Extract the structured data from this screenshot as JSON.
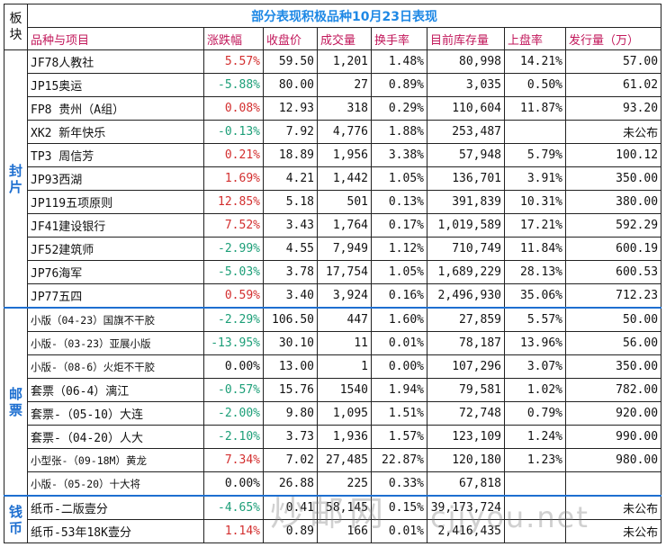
{
  "header": {
    "corner": "板块",
    "title": "部分表现积极品种10月23日表现",
    "columns": [
      "品种与项目",
      "涨跌幅",
      "收盘价",
      "成交量",
      "换手率",
      "目前库存量",
      "上盘率",
      "发行量（万）"
    ]
  },
  "groups": [
    {
      "label": "封片",
      "color": "#1e6fd0",
      "rows": [
        {
          "name": "JF78人教社",
          "change": "5.57%",
          "dir": "up",
          "close": "59.50",
          "volume": "1,201",
          "turnover": "1.48%",
          "stock": "80,998",
          "rate": "14.21%",
          "issue": "57.00"
        },
        {
          "name": "JP15奥运",
          "change": "-5.88%",
          "dir": "down",
          "close": "80.00",
          "volume": "27",
          "turnover": "0.89%",
          "stock": "3,035",
          "rate": "0.50%",
          "issue": "61.02"
        },
        {
          "name": "FP8 贵州（A组）",
          "change": "0.08%",
          "dir": "up",
          "close": "12.93",
          "volume": "318",
          "turnover": "0.29%",
          "stock": "110,604",
          "rate": "11.87%",
          "issue": "93.20"
        },
        {
          "name": "XK2 新年快乐",
          "change": "-0.13%",
          "dir": "down",
          "close": "7.92",
          "volume": "4,776",
          "turnover": "1.88%",
          "stock": "253,487",
          "rate": "",
          "issue": "未公布"
        },
        {
          "name": "TP3 周信芳",
          "change": "0.21%",
          "dir": "up",
          "close": "18.89",
          "volume": "1,956",
          "turnover": "3.38%",
          "stock": "57,948",
          "rate": "5.79%",
          "issue": "100.12"
        },
        {
          "name": "JP93西湖",
          "change": "1.69%",
          "dir": "up",
          "close": "4.21",
          "volume": "1,442",
          "turnover": "1.05%",
          "stock": "136,701",
          "rate": "3.91%",
          "issue": "350.00"
        },
        {
          "name": "JP119五项原则",
          "change": "12.85%",
          "dir": "up",
          "close": "5.18",
          "volume": "501",
          "turnover": "0.13%",
          "stock": "391,839",
          "rate": "10.31%",
          "issue": "380.00"
        },
        {
          "name": "JF41建设银行",
          "change": "7.52%",
          "dir": "up",
          "close": "3.43",
          "volume": "1,764",
          "turnover": "0.17%",
          "stock": "1,019,589",
          "rate": "17.21%",
          "issue": "592.29"
        },
        {
          "name": "JF52建筑师",
          "change": "-2.99%",
          "dir": "down",
          "close": "4.55",
          "volume": "7,949",
          "turnover": "1.12%",
          "stock": "710,749",
          "rate": "11.84%",
          "issue": "600.19"
        },
        {
          "name": "JP76海军",
          "change": "-5.03%",
          "dir": "down",
          "close": "3.78",
          "volume": "17,754",
          "turnover": "1.05%",
          "stock": "1,689,229",
          "rate": "28.13%",
          "issue": "600.53"
        },
        {
          "name": "JP77五四",
          "change": "0.59%",
          "dir": "up",
          "close": "3.40",
          "volume": "3,924",
          "turnover": "0.16%",
          "stock": "2,496,930",
          "rate": "35.06%",
          "issue": "712.23"
        }
      ]
    },
    {
      "label": "邮票",
      "color": "#1e6fd0",
      "rows": [
        {
          "name": "小版（04-23）国旗不干胶",
          "change": "-2.29%",
          "dir": "down",
          "close": "106.50",
          "volume": "447",
          "turnover": "1.60%",
          "stock": "27,859",
          "rate": "5.57%",
          "issue": "50.00"
        },
        {
          "name": "小版-（03-23）亚展小版",
          "change": "-13.95%",
          "dir": "down",
          "close": "30.10",
          "volume": "11",
          "turnover": "0.01%",
          "stock": "78,187",
          "rate": "13.96%",
          "issue": "56.00"
        },
        {
          "name": "小版-（08-6）火炬不干胶",
          "change": "0.00%",
          "dir": "flat",
          "close": "13.00",
          "volume": "1",
          "turnover": "0.00%",
          "stock": "107,296",
          "rate": "3.07%",
          "issue": "350.00"
        },
        {
          "name": "套票（06-4）漓江",
          "change": "-0.57%",
          "dir": "down",
          "close": "15.76",
          "volume": "1540",
          "turnover": "1.94%",
          "stock": "79,581",
          "rate": "1.02%",
          "issue": "782.00"
        },
        {
          "name": "套票-（05-10）大连",
          "change": "-2.00%",
          "dir": "down",
          "close": "9.80",
          "volume": "1,095",
          "turnover": "1.51%",
          "stock": "72,748",
          "rate": "0.79%",
          "issue": "920.00"
        },
        {
          "name": "套票-（04-20）人大",
          "change": "-2.10%",
          "dir": "down",
          "close": "3.73",
          "volume": "1,936",
          "turnover": "1.57%",
          "stock": "123,109",
          "rate": "1.24%",
          "issue": "990.00"
        },
        {
          "name": "小型张-（09-18M）黄龙",
          "change": "7.34%",
          "dir": "up",
          "close": "7.02",
          "volume": "27,485",
          "turnover": "22.87%",
          "stock": "120,180",
          "rate": "1.23%",
          "issue": "980.00"
        },
        {
          "name": "小版-（05-20）十大将",
          "change": "0.00%",
          "dir": "flat",
          "close": "26.88",
          "volume": "225",
          "turnover": "0.33%",
          "stock": "67,818",
          "rate": "",
          "issue": ""
        }
      ]
    },
    {
      "label": "钱币",
      "color": "#1e6fd0",
      "rows": [
        {
          "name": "纸币-二版壹分",
          "change": "-4.65%",
          "dir": "down",
          "close": "0.41",
          "volume": "58,145",
          "turnover": "0.15%",
          "stock": "39,173,724",
          "rate": "",
          "issue": "未公布"
        },
        {
          "name": "纸币-53年18K壹分",
          "change": "1.14%",
          "dir": "up",
          "close": "0.89",
          "volume": "166",
          "turnover": "0.01%",
          "stock": "2,416,435",
          "rate": "",
          "issue": "未公布"
        }
      ]
    }
  ],
  "watermark": {
    "text": "炒邮网",
    "url": "cjjyou.net"
  },
  "colors": {
    "up": "#d32f2f",
    "down": "#1b9e77",
    "header": "#c2185b",
    "title": "#1e88e5"
  }
}
